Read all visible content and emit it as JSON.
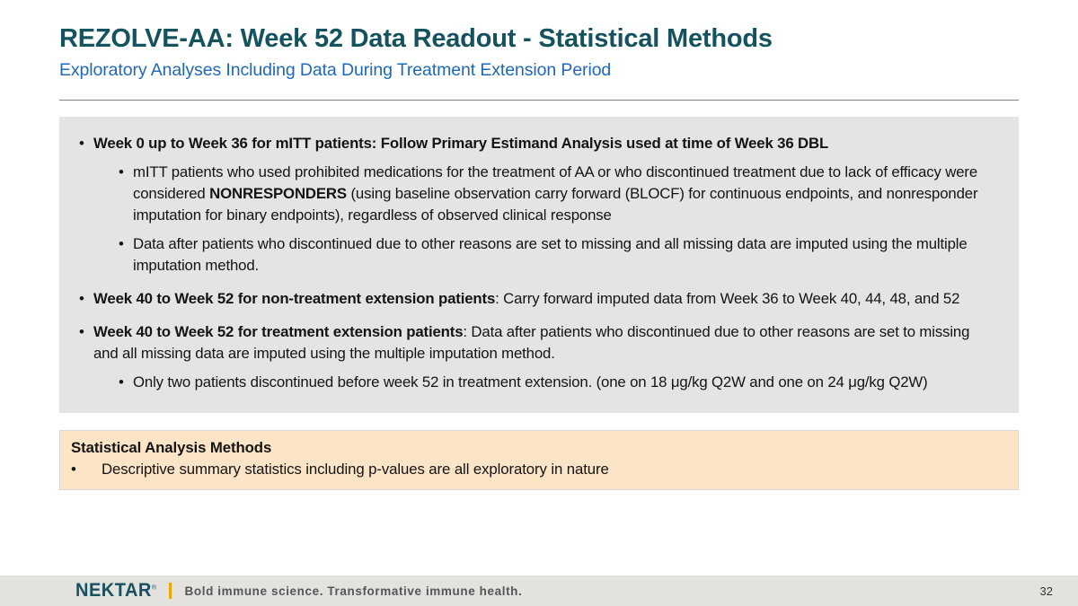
{
  "header": {
    "title": "REZOLVE-AA: Week 52 Data Readout - Statistical Methods",
    "subtitle": "Exploratory Analyses Including Data During Treatment Extension Period",
    "title_color": "#14535E",
    "subtitle_color": "#2068B8"
  },
  "main_box": {
    "background_color": "#E4E4E4",
    "marker": "•",
    "items": [
      {
        "level": 1,
        "segments": [
          {
            "text": "Week 0 up to Week 36 for mITT patients: Follow Primary Estimand Analysis used at time of Week 36 DBL",
            "bold": true
          }
        ]
      },
      {
        "level": 2,
        "segments": [
          {
            "text": "mITT patients who used prohibited medications for the treatment of AA or who discontinued treatment due to lack of efficacy were considered ",
            "bold": false
          },
          {
            "text": "NONRESPONDERS",
            "bold": true
          },
          {
            "text": " (using baseline observation carry forward (BLOCF) for continuous endpoints, and nonresponder imputation for binary endpoints), regardless of observed clinical response",
            "bold": false
          }
        ]
      },
      {
        "level": 2,
        "segments": [
          {
            "text": "Data after patients who discontinued due to other reasons are set to missing and all missing data are imputed using the multiple imputation method.",
            "bold": false
          }
        ]
      },
      {
        "level": 1,
        "segments": [
          {
            "text": "Week 40 to Week 52 for non-treatment extension patients",
            "bold": true
          },
          {
            "text": ": Carry forward imputed data from Week 36 to Week 40, 44, 48, and 52",
            "bold": false
          }
        ]
      },
      {
        "level": 1,
        "segments": [
          {
            "text": "Week 40 to Week 52 for treatment extension patients",
            "bold": true
          },
          {
            "text": ": Data after patients who discontinued due to other reasons are set to missing and all missing data are imputed using the multiple imputation method.",
            "bold": false
          }
        ]
      },
      {
        "level": 2,
        "segments": [
          {
            "text": "Only two patients discontinued before week 52 in treatment extension. (one on 18 μg/kg Q2W and one on 24 μg/kg Q2W)",
            "bold": false
          }
        ]
      }
    ]
  },
  "callout": {
    "title": "Statistical Analysis Methods",
    "marker": "•",
    "bullet": "Descriptive summary statistics including p-values are all exploratory in nature",
    "background_color": "#FCE5C7",
    "border_color": "#D9D9D9"
  },
  "footer": {
    "logo": "NEKTAR",
    "logo_mark": "®",
    "tagline": "Bold immune science. Transformative immune health.",
    "page_number": "32",
    "accent_color": "#F0A500",
    "band_color": "#E3E2DE"
  }
}
